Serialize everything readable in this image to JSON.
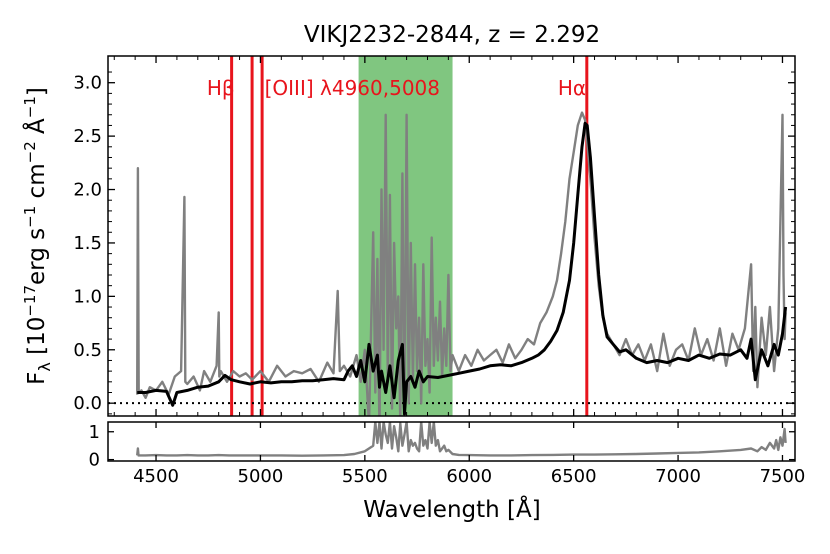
{
  "chart_data": [
    {
      "type": "line",
      "panel": "main-spectrum",
      "title": "VIKJ2232-2844, z = 2.292",
      "xlabel": "Wavelength [Å]",
      "ylabel": {
        "prefix": "F",
        "sub": "λ",
        "unit_start": " [10",
        "exp1": "−17",
        "unit_mid": "erg s",
        "exp2": "−1",
        "unit_mid2": " cm",
        "exp3": "−2",
        "unit_mid3": " Å",
        "exp4": "−1",
        "unit_end": "]"
      },
      "xlim": [
        4270,
        7560
      ],
      "ylim": [
        -0.12,
        3.25
      ],
      "xticks": [
        4500,
        5000,
        5500,
        6000,
        6500,
        7000,
        7500
      ],
      "xtick_labels": [
        "4500",
        "5000",
        "5500",
        "6000",
        "6500",
        "7000",
        "7500"
      ],
      "yticks": [
        0.0,
        0.5,
        1.0,
        1.5,
        2.0,
        2.5,
        3.0
      ],
      "ytick_labels": [
        "0.0",
        "0.5",
        "1.0",
        "1.5",
        "2.0",
        "2.5",
        "3.0"
      ],
      "zero_line": {
        "y": 0,
        "style": "dotted",
        "color": "#000000"
      },
      "shaded_region": {
        "x": [
          5470,
          5920
        ],
        "color": "#2ca02c",
        "alpha": 0.6
      },
      "emission_lines": [
        {
          "name": "Hβ",
          "wavelength": 4862
        },
        {
          "name": "[OIII] λ4960",
          "wavelength": 4960
        },
        {
          "name": "[OIII] λ5008",
          "wavelength": 5008
        },
        {
          "name": "Hα",
          "wavelength": 6563
        }
      ],
      "line_labels": [
        {
          "text": "Hβ",
          "x": 4810
        },
        {
          "text": "[OIII] λ4960,5008",
          "x": 5440
        },
        {
          "text": "Hα",
          "x": 6492
        }
      ],
      "line_label_y": 2.95,
      "series": [
        {
          "name": "observed flux",
          "color": "#808080",
          "x": [
            4410,
            4413,
            4417,
            4430,
            4450,
            4470,
            4500,
            4530,
            4560,
            4590,
            4620,
            4636,
            4640,
            4650,
            4680,
            4710,
            4730,
            4760,
            4790,
            4800,
            4803,
            4810,
            4840,
            4870,
            4900,
            4930,
            4960,
            5000,
            5040,
            5080,
            5120,
            5160,
            5200,
            5240,
            5280,
            5320,
            5350,
            5370,
            5380,
            5400,
            5430,
            5460,
            5480,
            5500,
            5520,
            5540,
            5550,
            5560,
            5570,
            5580,
            5590,
            5600,
            5610,
            5620,
            5630,
            5640,
            5650,
            5660,
            5670,
            5680,
            5690,
            5700,
            5710,
            5720,
            5730,
            5740,
            5750,
            5760,
            5770,
            5780,
            5790,
            5800,
            5810,
            5820,
            5830,
            5840,
            5850,
            5860,
            5870,
            5880,
            5890,
            5900,
            5910,
            5920,
            5950,
            5980,
            6010,
            6040,
            6070,
            6100,
            6130,
            6160,
            6190,
            6220,
            6250,
            6280,
            6310,
            6340,
            6370,
            6400,
            6420,
            6440,
            6460,
            6480,
            6500,
            6520,
            6540,
            6555,
            6565,
            6580,
            6600,
            6620,
            6640,
            6660,
            6690,
            6720,
            6750,
            6780,
            6810,
            6840,
            6870,
            6900,
            6930,
            6960,
            6990,
            7020,
            7050,
            7080,
            7110,
            7140,
            7170,
            7200,
            7230,
            7260,
            7290,
            7320,
            7350,
            7360,
            7370,
            7380,
            7400,
            7420,
            7440,
            7460,
            7480,
            7500,
            7505,
            7510,
            7515
          ],
          "y": [
            0.08,
            2.2,
            0.1,
            0.12,
            0.05,
            0.15,
            0.12,
            0.2,
            0.08,
            0.25,
            0.3,
            1.93,
            0.2,
            0.18,
            0.25,
            0.12,
            0.3,
            0.2,
            0.35,
            0.85,
            0.25,
            0.3,
            0.2,
            0.3,
            0.25,
            0.28,
            0.22,
            0.3,
            0.2,
            0.35,
            0.25,
            0.3,
            0.28,
            0.32,
            0.2,
            0.38,
            0.28,
            1.05,
            0.3,
            0.35,
            0.25,
            0.45,
            0.2,
            0.5,
            -0.2,
            1.6,
            0.1,
            1.35,
            -0.3,
            2.0,
            0.5,
            2.7,
            0.2,
            1.95,
            -0.05,
            1.5,
            0.7,
            1.0,
            -0.2,
            2.15,
            -0.3,
            2.7,
            0.0,
            1.5,
            0.2,
            1.3,
            0.3,
            0.8,
            0.0,
            1.3,
            0.35,
            0.6,
            0.1,
            1.55,
            0.35,
            0.8,
            0.4,
            0.95,
            0.25,
            0.7,
            0.35,
            1.2,
            0.3,
            0.45,
            0.3,
            0.45,
            0.35,
            0.5,
            0.4,
            0.45,
            0.5,
            0.38,
            0.55,
            0.42,
            0.5,
            0.6,
            0.55,
            0.75,
            0.85,
            1.0,
            1.15,
            1.4,
            1.7,
            2.1,
            2.35,
            2.6,
            2.72,
            2.65,
            2.45,
            2.1,
            1.55,
            1.1,
            0.8,
            0.65,
            0.55,
            0.45,
            0.6,
            0.45,
            0.55,
            0.4,
            0.55,
            0.3,
            0.65,
            0.35,
            0.5,
            0.55,
            0.4,
            0.7,
            0.45,
            0.6,
            0.4,
            0.7,
            0.35,
            0.65,
            0.5,
            0.7,
            1.3,
            0.3,
            0.9,
            0.15,
            0.8,
            0.45,
            0.9,
            0.3,
            0.7,
            2.7,
            1.2,
            0.6,
            0.85
          ]
        },
        {
          "name": "smoothed model",
          "color": "#000000",
          "x": [
            4410,
            4450,
            4500,
            4550,
            4580,
            4600,
            4650,
            4700,
            4750,
            4800,
            4830,
            4860,
            4900,
            4950,
            5000,
            5050,
            5100,
            5150,
            5200,
            5250,
            5300,
            5350,
            5400,
            5420,
            5440,
            5460,
            5480,
            5500,
            5520,
            5540,
            5560,
            5570,
            5580,
            5600,
            5620,
            5640,
            5660,
            5680,
            5690,
            5700,
            5720,
            5740,
            5760,
            5780,
            5800,
            5850,
            5900,
            5950,
            6000,
            6050,
            6100,
            6150,
            6200,
            6250,
            6300,
            6330,
            6360,
            6390,
            6420,
            6450,
            6480,
            6500,
            6520,
            6540,
            6555,
            6565,
            6580,
            6600,
            6620,
            6640,
            6660,
            6690,
            6720,
            6750,
            6800,
            6850,
            6900,
            6950,
            7000,
            7050,
            7100,
            7150,
            7200,
            7250,
            7300,
            7330,
            7350,
            7370,
            7400,
            7430,
            7460,
            7480,
            7500,
            7515
          ],
          "y": [
            0.1,
            0.1,
            0.12,
            0.11,
            -0.02,
            0.1,
            0.12,
            0.15,
            0.16,
            0.2,
            0.26,
            0.22,
            0.2,
            0.18,
            0.2,
            0.19,
            0.2,
            0.2,
            0.21,
            0.21,
            0.22,
            0.23,
            0.22,
            0.3,
            0.35,
            0.25,
            0.4,
            0.2,
            0.55,
            0.3,
            0.45,
            0.15,
            0.3,
            0.1,
            0.35,
            0.05,
            0.4,
            0.55,
            -0.1,
            0.2,
            0.25,
            0.15,
            0.3,
            0.2,
            0.25,
            0.24,
            0.26,
            0.28,
            0.3,
            0.32,
            0.35,
            0.36,
            0.35,
            0.38,
            0.42,
            0.45,
            0.5,
            0.58,
            0.68,
            0.85,
            1.15,
            1.5,
            1.95,
            2.4,
            2.62,
            2.6,
            2.3,
            1.75,
            1.2,
            0.82,
            0.62,
            0.55,
            0.48,
            0.5,
            0.42,
            0.38,
            0.4,
            0.38,
            0.42,
            0.4,
            0.45,
            0.42,
            0.46,
            0.45,
            0.5,
            0.42,
            0.6,
            0.22,
            0.5,
            0.35,
            0.55,
            0.45,
            0.65,
            0.9
          ]
        }
      ]
    },
    {
      "type": "line",
      "panel": "residual",
      "xlim": [
        4270,
        7560
      ],
      "ylim": [
        -0.05,
        1.35
      ],
      "yticks": [
        0,
        1
      ],
      "ytick_labels": [
        "0",
        "1"
      ],
      "series": [
        {
          "name": "flux error",
          "color": "#808080",
          "x": [
            4410,
            4413,
            4416,
            4450,
            4500,
            4550,
            4600,
            4650,
            4700,
            4750,
            4800,
            4850,
            4900,
            4950,
            5000,
            5100,
            5200,
            5300,
            5400,
            5450,
            5500,
            5540,
            5550,
            5560,
            5570,
            5580,
            5590,
            5600,
            5610,
            5620,
            5630,
            5640,
            5650,
            5660,
            5670,
            5680,
            5690,
            5700,
            5710,
            5720,
            5730,
            5740,
            5750,
            5760,
            5770,
            5780,
            5790,
            5800,
            5810,
            5820,
            5830,
            5840,
            5850,
            5860,
            5870,
            5880,
            5890,
            5900,
            5920,
            5950,
            6000,
            6100,
            6200,
            6300,
            6400,
            6500,
            6600,
            6700,
            6800,
            6900,
            7000,
            7100,
            7200,
            7300,
            7350,
            7380,
            7400,
            7420,
            7440,
            7460,
            7470,
            7480,
            7490,
            7500,
            7510,
            7515
          ],
          "y": [
            0.15,
            0.4,
            0.15,
            0.15,
            0.16,
            0.15,
            0.15,
            0.16,
            0.15,
            0.15,
            0.16,
            0.15,
            0.15,
            0.15,
            0.15,
            0.15,
            0.14,
            0.15,
            0.16,
            0.2,
            0.3,
            0.5,
            1.35,
            0.6,
            1.35,
            0.4,
            1.35,
            0.9,
            0.6,
            1.35,
            0.4,
            1.2,
            0.8,
            0.3,
            1.3,
            0.5,
            0.9,
            1.35,
            0.3,
            0.7,
            0.5,
            0.6,
            0.4,
            0.3,
            1.35,
            0.5,
            0.7,
            0.4,
            1.35,
            0.6,
            1.35,
            0.5,
            0.7,
            0.3,
            0.4,
            0.5,
            0.3,
            0.35,
            0.2,
            0.17,
            0.16,
            0.15,
            0.15,
            0.16,
            0.17,
            0.18,
            0.18,
            0.19,
            0.2,
            0.22,
            0.24,
            0.26,
            0.3,
            0.35,
            0.4,
            0.3,
            0.45,
            0.35,
            0.6,
            0.4,
            0.7,
            0.35,
            0.8,
            0.5,
            1.1,
            0.6
          ]
        }
      ]
    }
  ]
}
